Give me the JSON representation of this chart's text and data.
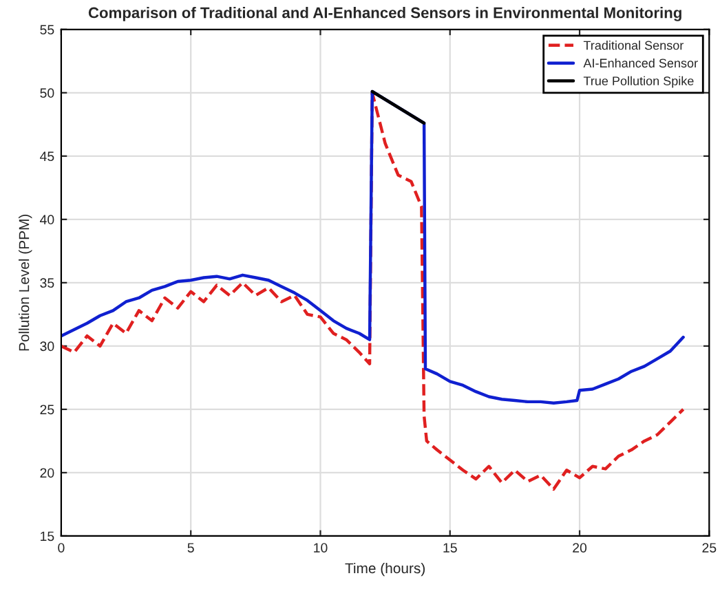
{
  "chart_data": {
    "type": "line",
    "title": "Comparison of Traditional and AI-Enhanced Sensors in Environmental Monitoring",
    "xlabel": "Time (hours)",
    "ylabel": "Pollution Level (PPM)",
    "xlim": [
      0,
      25
    ],
    "xticks": [
      0,
      5,
      10,
      15,
      20,
      25
    ],
    "ylim": [
      15,
      55
    ],
    "yticks": [
      15,
      20,
      25,
      30,
      35,
      40,
      45,
      50,
      55
    ],
    "grid": true,
    "legend": "top right",
    "series": [
      {
        "name": "Traditional Sensor",
        "color": "#e02020",
        "line_style": "dashed",
        "x": [
          0,
          0.5,
          1,
          1.5,
          2,
          2.5,
          3,
          3.5,
          4,
          4.5,
          5,
          5.5,
          6,
          6.5,
          7,
          7.5,
          8,
          8.5,
          9,
          9.5,
          10,
          10.5,
          11,
          11.5,
          11.9,
          12,
          12.5,
          13,
          13.5,
          13.9,
          14,
          14.1,
          14.5,
          15,
          15.5,
          16,
          16.5,
          17,
          17.5,
          18,
          18.5,
          19,
          19.5,
          20,
          20.5,
          21,
          21.5,
          22,
          22.5,
          23,
          23.5,
          24
        ],
        "values": [
          30,
          29.5,
          30.8,
          30,
          31.8,
          31,
          32.8,
          32,
          33.8,
          33,
          34.3,
          33.5,
          34.8,
          34,
          35,
          34,
          34.6,
          33.5,
          34,
          32.5,
          32.3,
          31,
          30.5,
          29.5,
          28.6,
          50,
          46,
          43.5,
          43,
          41,
          24.5,
          22.5,
          21.8,
          21,
          20.2,
          19.5,
          20.5,
          19.2,
          20.2,
          19.3,
          19.8,
          18.7,
          20.2,
          19.6,
          20.5,
          20.3,
          21.3,
          21.8,
          22.5,
          23,
          24,
          25
        ]
      },
      {
        "name": "AI-Enhanced Sensor",
        "color": "#1020d0",
        "line_style": "solid",
        "x": [
          0,
          0.5,
          1,
          1.5,
          2,
          2.5,
          3,
          3.5,
          4,
          4.5,
          5,
          5.5,
          6,
          6.5,
          7,
          7.5,
          8,
          8.5,
          9,
          9.5,
          10,
          10.5,
          11,
          11.5,
          11.9,
          12,
          14,
          14.05,
          14.5,
          15,
          15.5,
          16,
          16.5,
          17,
          17.5,
          18,
          18.5,
          19,
          19.5,
          19.9,
          20,
          20.5,
          21,
          21.5,
          22,
          22.5,
          23,
          23.5,
          24
        ],
        "values": [
          30.8,
          31.3,
          31.8,
          32.4,
          32.8,
          33.5,
          33.8,
          34.4,
          34.7,
          35.1,
          35.2,
          35.4,
          35.5,
          35.3,
          35.6,
          35.4,
          35.2,
          34.7,
          34.2,
          33.6,
          32.8,
          32,
          31.4,
          31,
          30.5,
          50.1,
          47.6,
          28.2,
          27.8,
          27.2,
          26.9,
          26.4,
          26,
          25.8,
          25.7,
          25.6,
          25.6,
          25.5,
          25.6,
          25.7,
          26.5,
          26.6,
          27,
          27.4,
          28,
          28.4,
          29,
          29.6,
          30.7
        ]
      },
      {
        "name": "True Pollution Spike",
        "color": "#000000",
        "line_style": "solid",
        "x": [
          12,
          14
        ],
        "values": [
          50.1,
          47.6
        ]
      }
    ]
  }
}
